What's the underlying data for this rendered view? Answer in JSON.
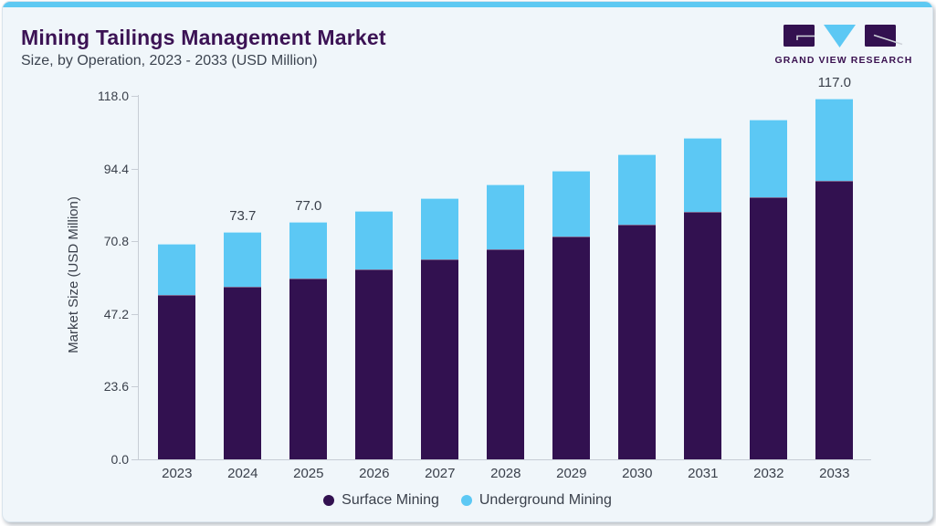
{
  "header": {
    "title": "Mining Tailings Management Market",
    "subtitle": "Size, by Operation, 2023 - 2033 (USD Million)",
    "logo_text": "GRAND VIEW RESEARCH"
  },
  "colors": {
    "accent_bar": "#5ec9f2",
    "surface_mining": "#321150",
    "underground_mining": "#5cc8f4",
    "title_text": "#3b1254",
    "body_text": "#3a404b",
    "axis_line": "#c7cdd5",
    "card_background": "#f0f6fa"
  },
  "chart_data": {
    "type": "bar",
    "stacked": true,
    "title": "Mining Tailings Management Market Size, by Operation, 2023 - 2033 (USD Million)",
    "categories": [
      "2023",
      "2024",
      "2025",
      "2026",
      "2027",
      "2028",
      "2029",
      "2030",
      "2031",
      "2032",
      "2033"
    ],
    "series": [
      {
        "name": "Surface Mining",
        "color": "#321150",
        "values": [
          53.3,
          55.9,
          58.7,
          61.7,
          64.8,
          68.2,
          72.2,
          76.1,
          80.4,
          85.2,
          90.3
        ]
      },
      {
        "name": "Underground Mining",
        "color": "#5cc8f4",
        "values": [
          16.7,
          17.8,
          18.3,
          18.9,
          20.1,
          20.9,
          21.6,
          23.0,
          24.1,
          25.2,
          26.7
        ]
      }
    ],
    "totals": [
      70.0,
      73.7,
      77.0,
      80.6,
      84.9,
      89.1,
      93.8,
      99.1,
      104.5,
      110.4,
      117.0
    ],
    "bar_labels": [
      "",
      "73.7",
      "77.0",
      "",
      "",
      "",
      "",
      "",
      "",
      "",
      "117.0"
    ],
    "xlabel": "",
    "ylabel": "Market Size (USD Million)",
    "ytick_labels": [
      "0.0",
      "23.6",
      "47.2",
      "70.8",
      "94.4",
      "118.0"
    ],
    "ylim": [
      0,
      118
    ],
    "grid": false,
    "legend": [
      "Surface Mining",
      "Underground Mining"
    ],
    "legend_position": "bottom"
  }
}
